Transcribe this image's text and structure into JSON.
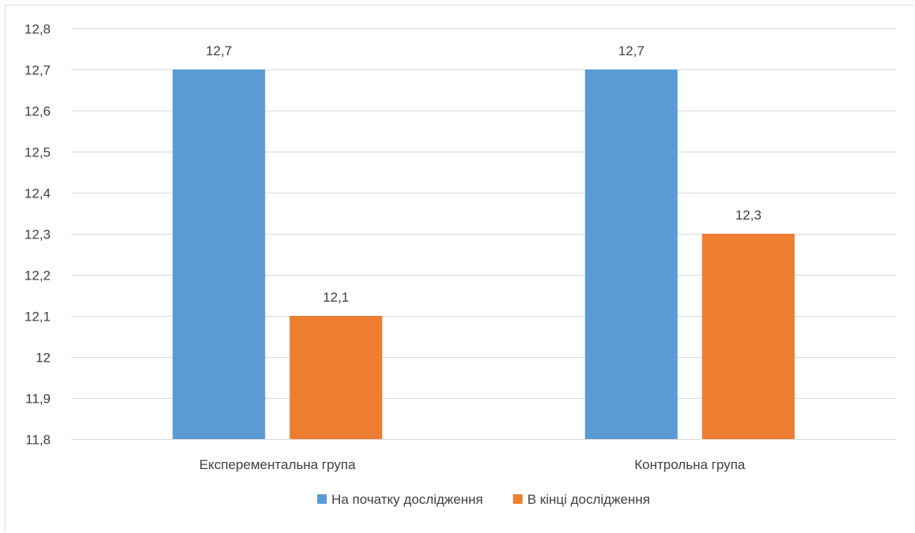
{
  "chart_data": {
    "type": "bar",
    "categories": [
      "Експерементальна група",
      "Контрольна група"
    ],
    "series": [
      {
        "name": "На початку дослідження",
        "values": [
          12.7,
          12.7
        ],
        "color": "#5b9bd5"
      },
      {
        "name": "В кінці дослідження",
        "values": [
          12.1,
          12.3
        ],
        "color": "#ed7d31"
      }
    ],
    "data_labels": [
      [
        "12,7",
        "12,7"
      ],
      [
        "12,1",
        "12,3"
      ]
    ],
    "y_ticks": [
      "11,8",
      "11,9",
      "12",
      "12,1",
      "12,2",
      "12,3",
      "12,4",
      "12,5",
      "12,6",
      "12,7",
      "12,8"
    ],
    "ylim": [
      11.8,
      12.8
    ],
    "y_step": 0.1,
    "grid": true,
    "legend_position": "bottom",
    "title": "",
    "xlabel": "",
    "ylabel": ""
  }
}
